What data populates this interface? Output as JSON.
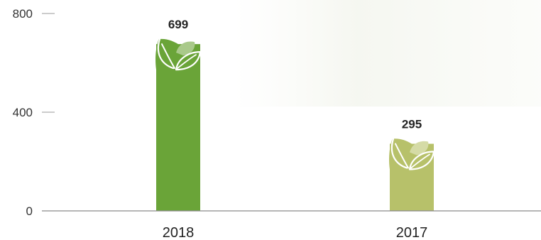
{
  "chart_data": {
    "type": "bar",
    "categories": [
      "2018",
      "2017"
    ],
    "values": [
      699,
      295
    ],
    "ylim": [
      0,
      800
    ],
    "yticks": [
      "800",
      "400",
      "0"
    ],
    "ytick_values": [
      800,
      400,
      0
    ],
    "data_labels": [
      "699",
      "295"
    ],
    "bar_colors": [
      "#6aa438",
      "#b7c16a"
    ],
    "marker_icon": "leaf-icon",
    "grid": false,
    "legend": "none"
  }
}
